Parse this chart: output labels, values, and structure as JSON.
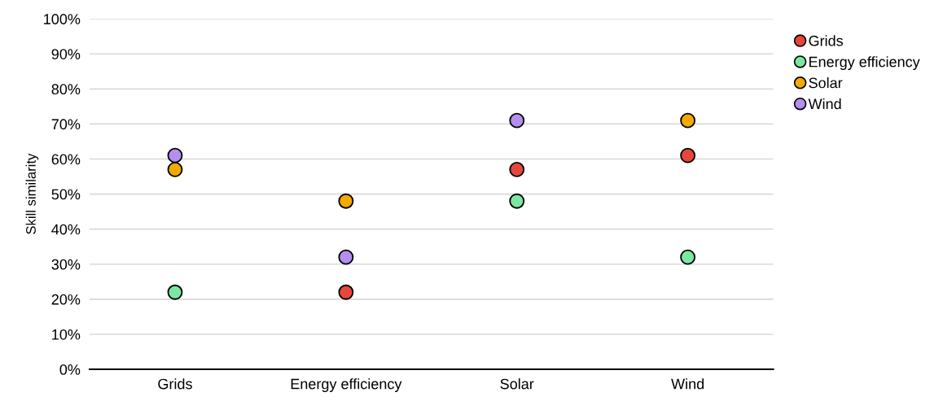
{
  "chart_data": {
    "type": "scatter",
    "ylabel": "Skill similarity",
    "categories": [
      "Grids",
      "Energy efficiency",
      "Solar",
      "Wind"
    ],
    "series": [
      {
        "name": "Grids",
        "color": "#e5473d",
        "values": [
          null,
          22,
          57,
          61
        ]
      },
      {
        "name": "Energy efficiency",
        "color": "#7ae8a2",
        "values": [
          22,
          null,
          48,
          32
        ]
      },
      {
        "name": "Solar",
        "color": "#f2aa00",
        "values": [
          57,
          48,
          null,
          71
        ]
      },
      {
        "name": "Wind",
        "color": "#b58ef0",
        "values": [
          61,
          32,
          71,
          null
        ]
      }
    ],
    "ylim": [
      0,
      100
    ],
    "yticks": [
      {
        "value": 0,
        "label": "0%"
      },
      {
        "value": 10,
        "label": "10%"
      },
      {
        "value": 20,
        "label": "20%"
      },
      {
        "value": 30,
        "label": "30%"
      },
      {
        "value": 40,
        "label": "40%"
      },
      {
        "value": 50,
        "label": "50%"
      },
      {
        "value": 60,
        "label": "60%"
      },
      {
        "value": 70,
        "label": "70%"
      },
      {
        "value": 80,
        "label": "80%"
      },
      {
        "value": 90,
        "label": "90%"
      },
      {
        "value": 100,
        "label": "100%"
      }
    ],
    "grid": "y",
    "legend": "top right",
    "marker": "circle"
  }
}
